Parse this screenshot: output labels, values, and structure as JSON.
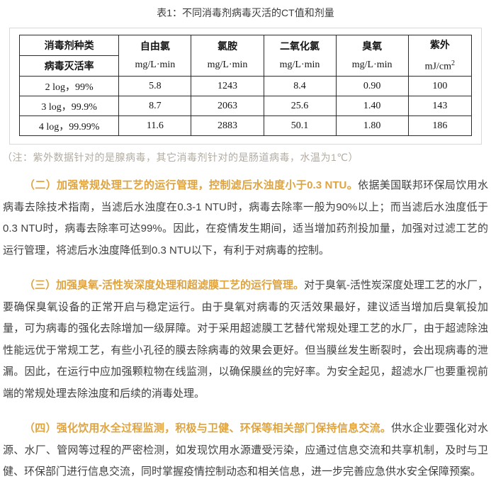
{
  "title": "表1：不同消毒剂病毒灭活的CT值和剂量",
  "table": {
    "header": {
      "col1_top": "消毒剂种类",
      "col1_bottom": "病毒灭活率",
      "columns": [
        {
          "name": "自由氯",
          "unit": "mg/L·min"
        },
        {
          "name": "氯胺",
          "unit": "mg/L·min"
        },
        {
          "name": "二氧化氯",
          "unit": "mg/L·min"
        },
        {
          "name": "臭氧",
          "unit": "mg/L·min"
        },
        {
          "name": "紫外",
          "unit": "mJ/cm",
          "unit_sup": "2"
        }
      ]
    },
    "rows": [
      {
        "label": "2 log，99%",
        "values": [
          "5.8",
          "1243",
          "8.4",
          "0.90",
          "100"
        ]
      },
      {
        "label": "3 log，99.9%",
        "values": [
          "8.7",
          "2063",
          "25.6",
          "1.40",
          "143"
        ]
      },
      {
        "label": "4 log，99.99%",
        "values": [
          "11.6",
          "2883",
          "50.1",
          "1.80",
          "186"
        ]
      }
    ]
  },
  "note": "（注：紫外数据针对的是腺病毒，其它消毒剂针对的是肠道病毒，水温为1℃）",
  "paragraphs": [
    {
      "heading": "（二）加强常规处理工艺的运行管理，控制滤后水浊度小于0.3 NTU。",
      "body": "依据美国联邦环保局饮用水病毒去除技术指南，当滤后水浊度在0.3-1 NTU时，病毒去除率一般为90%以上；而当滤后水浊度低于0.3 NTU时，病毒去除率可达99%。因此，在疫情发生期间，适当增加药剂投加量，加强对过滤工艺的运行管理，将滤后水浊度降低到0.3 NTU以下，有利于对病毒的控制。"
    },
    {
      "heading": "（三）加强臭氧-活性炭深度处理和超滤膜工艺的运行管理。",
      "body": "对于臭氧-活性炭深度处理工艺的水厂，要确保臭氧设备的正常开启与稳定运行。由于臭氧对病毒的灭活效果最好，建议适当增加后臭氧投加量，可为病毒的强化去除增加一级屏障。对于采用超滤膜工艺替代常规处理工艺的水厂，由于超滤除浊性能远优于常规工艺，有些小孔径的膜去除病毒的效果会更好。但当膜丝发生断裂时，会出现病毒的泄漏。因此，在运行中应加强颗粒物在线监测，以确保膜丝的完好率。为安全起见，超滤水厂也要重视前端的常规处理去除浊度和后续的消毒处理。"
    },
    {
      "heading": "（四）强化饮用水全过程监测，积极与卫健、环保等相关部门保持信息交流。",
      "body": "供水企业要强化对水源、水厂、管网等过程的严密检测，如发现饮用水源遭受污染，应通过信息交流和共享机制，及时与卫健、环保部门进行信息交流，同时掌握疫情控制动态和相关信息，进一步完善应急供水安全保障预案。"
    }
  ],
  "colors": {
    "heading_accent": "#dfa43f",
    "body_text": "#404040",
    "note_text": "#b2aca2",
    "table_border": "#2b2b2b",
    "outer_box_border": "#d9d9d9"
  }
}
